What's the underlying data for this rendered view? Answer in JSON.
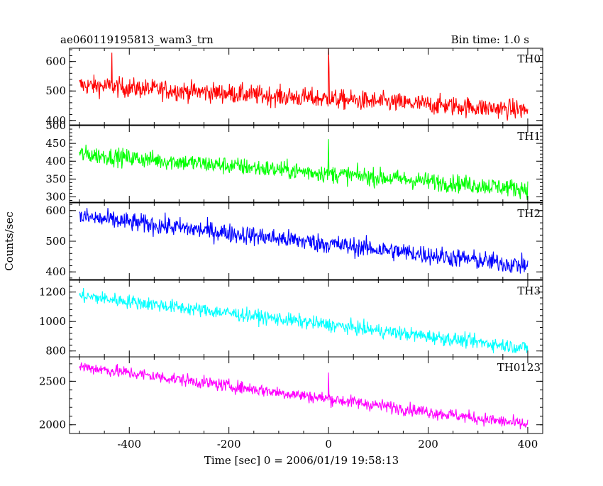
{
  "header": {
    "left_title": "ae060119195813_wam3_trn",
    "right_title": "Bin time: 1.0 s"
  },
  "chart_data": {
    "type": "line",
    "xlabel": "Time [sec] 0 = 2006/01/19 19:58:13",
    "ylabel": "Counts/sec",
    "xlim": [
      -520,
      430
    ],
    "x_ticks": [
      -400,
      -200,
      0,
      200,
      400
    ],
    "x_range": [
      -500,
      400
    ],
    "bin_time": 1.0,
    "grid": false,
    "series": [
      {
        "name": "TH0",
        "color": "#ff0000",
        "ylim": [
          385,
          645
        ],
        "y_ticks": [
          400,
          500,
          600
        ],
        "start": 520,
        "end": 435,
        "noise": 32,
        "scale": 1,
        "spikes": [
          {
            "x": -435,
            "y": 630
          },
          {
            "x": 0,
            "y": 645
          },
          {
            "x": 1,
            "y": 580
          }
        ]
      },
      {
        "name": "TH1",
        "color": "#00ff00",
        "ylim": [
          285,
          500
        ],
        "y_ticks": [
          300,
          350,
          400,
          450,
          500
        ],
        "start": 420,
        "end": 322,
        "noise": 24,
        "scale": 1,
        "spikes": [
          {
            "x": 0,
            "y": 462
          }
        ]
      },
      {
        "name": "TH2",
        "color": "#0000ff",
        "ylim": [
          375,
          625
        ],
        "y_ticks": [
          400,
          500,
          600
        ],
        "start": 580,
        "end": 420,
        "noise": 30,
        "scale": 1,
        "spikes": []
      },
      {
        "name": "TH3",
        "color": "#00ffff",
        "ylim": [
          760,
          1280
        ],
        "y_ticks": [
          800,
          1000,
          1200
        ],
        "start": 1175,
        "end": 820,
        "noise": 45,
        "scale": 1,
        "spikes": []
      },
      {
        "name": "TH0123",
        "color": "#ff00ff",
        "ylim": [
          1900,
          2780
        ],
        "y_ticks": [
          2000,
          2500
        ],
        "start": 2670,
        "end": 2000,
        "noise": 70,
        "scale": 1,
        "spikes": [
          {
            "x": 0,
            "y": 2600
          }
        ]
      }
    ]
  }
}
